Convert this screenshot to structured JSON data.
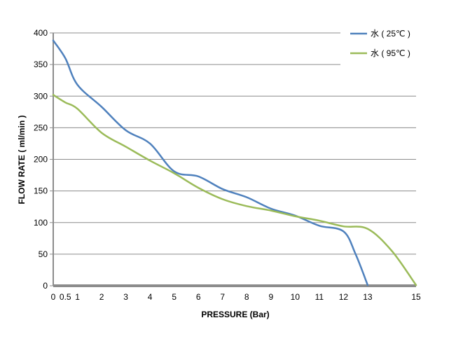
{
  "chart_data": {
    "type": "line",
    "title": "",
    "xlabel": "PRESSURE (Bar)",
    "ylabel": "FLOW RATE ( ml/min )",
    "xlim": [
      0,
      15
    ],
    "ylim": [
      0,
      400
    ],
    "x_ticks": [
      0,
      0.5,
      1,
      2,
      3,
      4,
      5,
      6,
      7,
      8,
      9,
      10,
      11,
      12,
      13,
      15
    ],
    "x_tick_labels": [
      "0",
      "0.5",
      "1",
      "2",
      "3",
      "4",
      "5",
      "6",
      "7",
      "8",
      "9",
      "10",
      "11",
      "12",
      "13",
      "15"
    ],
    "y_ticks": [
      0,
      50,
      100,
      150,
      200,
      250,
      300,
      350,
      400
    ],
    "y_tick_labels": [
      "0",
      "50",
      "100",
      "150",
      "200",
      "250",
      "300",
      "350",
      "400"
    ],
    "grid": "horizontal",
    "legend_position": "top-right",
    "series": [
      {
        "name": "水 ( 25℃ )",
        "color": "#4F81BD",
        "points": [
          [
            0,
            388
          ],
          [
            0.5,
            360
          ],
          [
            1,
            318
          ],
          [
            2,
            283
          ],
          [
            3,
            246
          ],
          [
            4,
            225
          ],
          [
            5,
            181
          ],
          [
            6,
            173
          ],
          [
            7,
            153
          ],
          [
            8,
            140
          ],
          [
            9,
            122
          ],
          [
            10,
            111
          ],
          [
            11,
            95
          ],
          [
            12,
            86
          ],
          [
            12.5,
            50
          ],
          [
            13,
            1
          ]
        ]
      },
      {
        "name": "水 ( 95℃ )",
        "color": "#9BBB59",
        "points": [
          [
            0,
            302
          ],
          [
            0.5,
            290
          ],
          [
            1,
            280
          ],
          [
            2,
            242
          ],
          [
            3,
            220
          ],
          [
            4,
            198
          ],
          [
            5,
            178
          ],
          [
            6,
            155
          ],
          [
            7,
            137
          ],
          [
            8,
            126
          ],
          [
            9,
            119
          ],
          [
            10,
            110
          ],
          [
            11,
            103
          ],
          [
            12,
            94
          ],
          [
            13,
            90
          ],
          [
            14,
            55
          ],
          [
            15,
            1
          ]
        ]
      }
    ]
  }
}
